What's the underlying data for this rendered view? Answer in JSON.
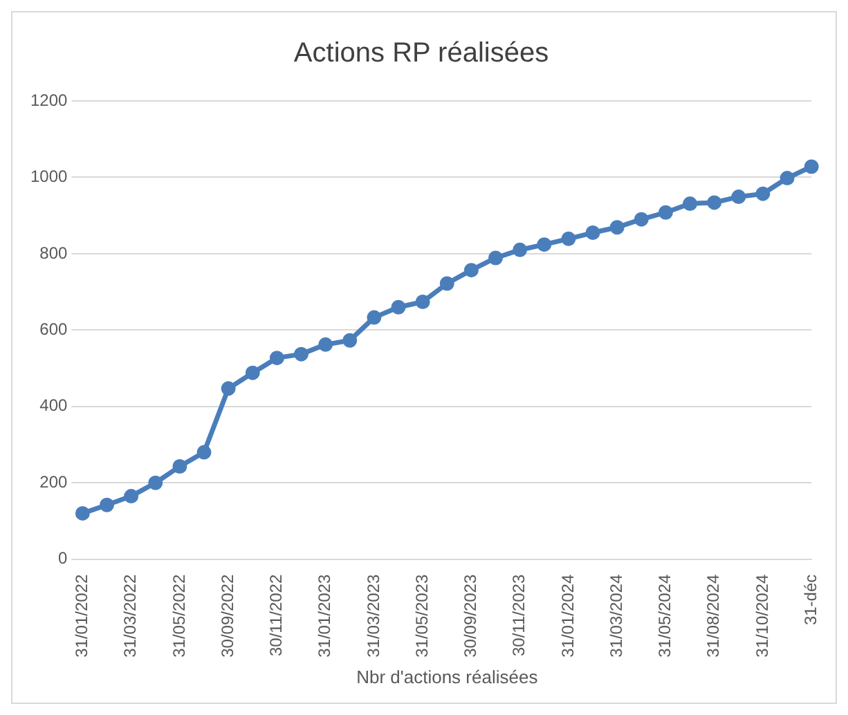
{
  "chart_data": {
    "type": "line",
    "title": "Actions RP réalisées",
    "xlabel": "Nbr d'actions réalisées",
    "categories": [
      "31/01/2022",
      null,
      "31/03/2022",
      null,
      "31/05/2022",
      null,
      "30/09/2022",
      null,
      "30/11/2022",
      null,
      "31/01/2023",
      null,
      "31/03/2023",
      null,
      "31/05/2023",
      null,
      "30/09/2023",
      null,
      "30/11/2023",
      null,
      "31/01/2024",
      null,
      "31/03/2024",
      null,
      "31/05/2024",
      null,
      "31/08/2024",
      null,
      "31/10/2024",
      null,
      "31-déc"
    ],
    "series": [
      {
        "color": "#4a7ebb",
        "values": [
          120,
          142,
          165,
          200,
          243,
          280,
          447,
          488,
          527,
          537,
          562,
          573,
          633,
          660,
          674,
          722,
          757,
          789,
          810,
          824,
          839,
          855,
          869,
          890,
          908,
          931,
          934,
          949,
          957,
          998,
          1028
        ]
      }
    ],
    "ylim": [
      0,
      1200
    ],
    "yticks": [
      0,
      200,
      400,
      600,
      800,
      1000,
      1200
    ],
    "grid": "y",
    "legend": false,
    "marker": "circle",
    "line_style": "solid"
  }
}
